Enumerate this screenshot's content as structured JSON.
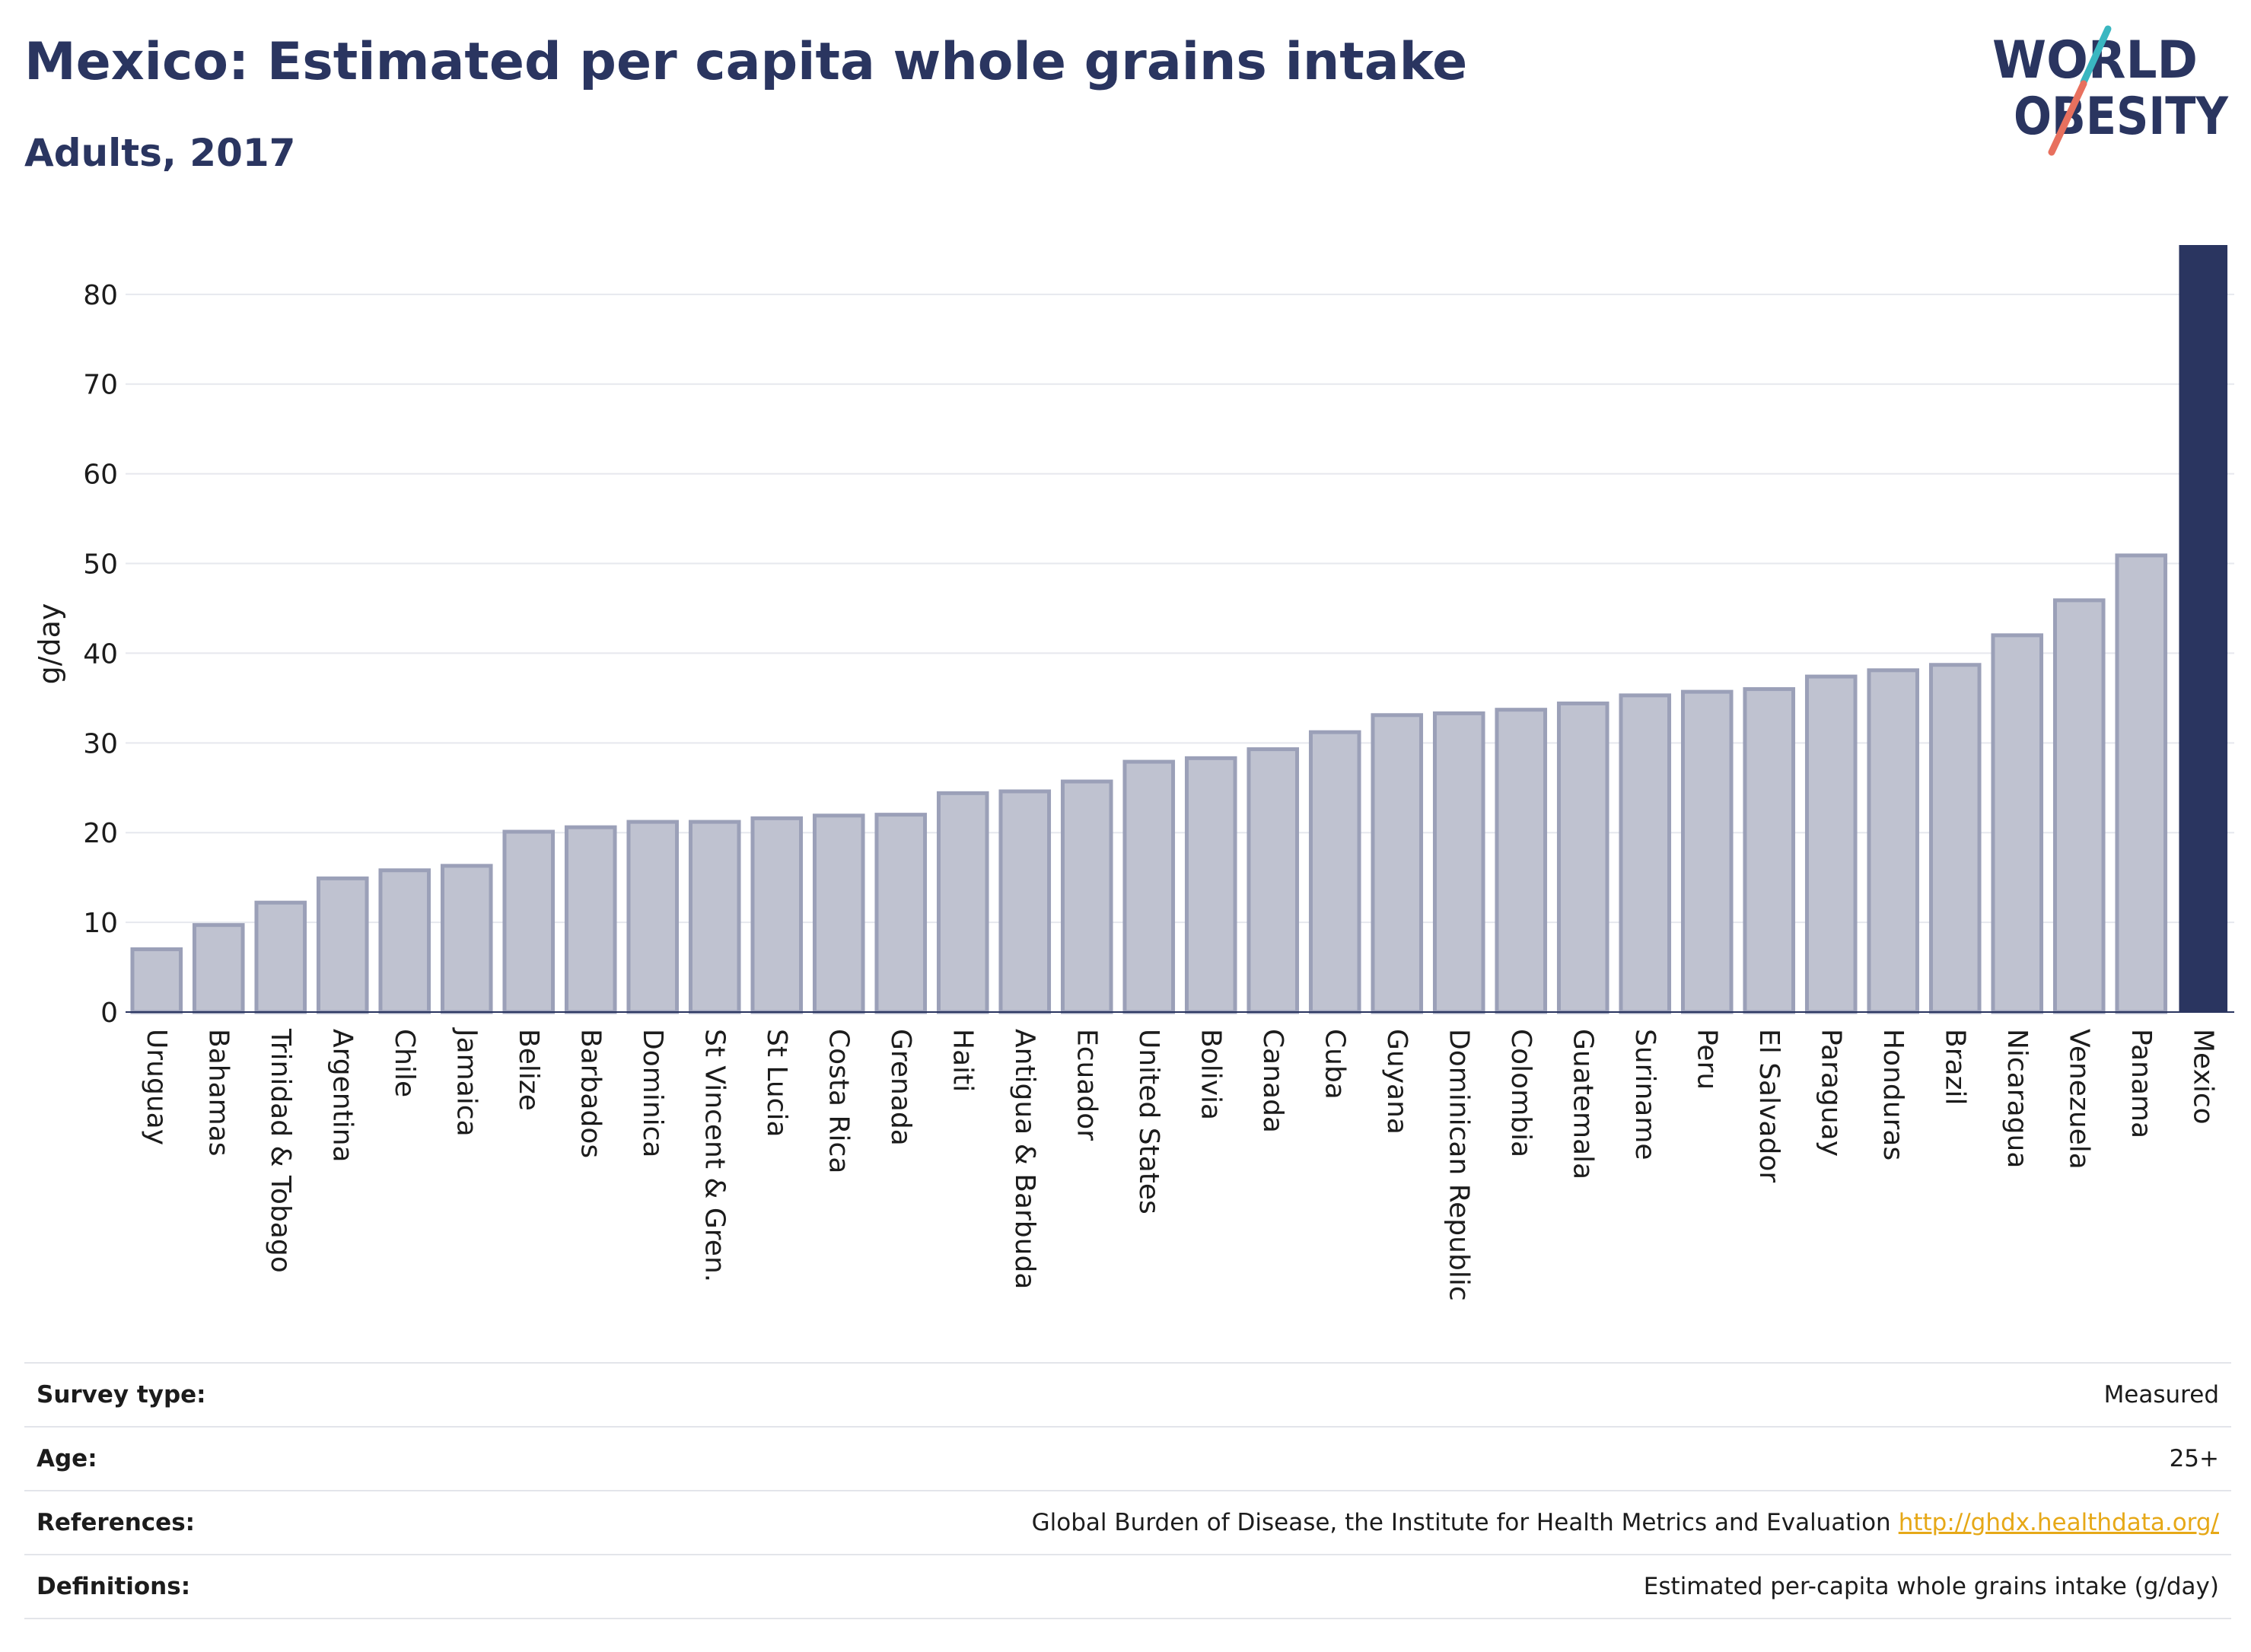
{
  "header": {
    "title": "Mexico: Estimated per capita whole grains intake",
    "subtitle": "Adults, 2017"
  },
  "logo": {
    "line1": "WORLD",
    "line2": "OBESITY",
    "colors": {
      "text": "#2a3560",
      "teal": "#3ab7c1",
      "coral": "#e8705e"
    }
  },
  "chart_data": {
    "type": "bar",
    "title": "Mexico: Estimated per capita whole grains intake",
    "subtitle": "Adults, 2017",
    "xlabel": "",
    "ylabel": "g/day",
    "ylim": [
      0,
      85.5
    ],
    "yticks": [
      0,
      10,
      20,
      30,
      40,
      50,
      60,
      70,
      80
    ],
    "grid": true,
    "highlight": "Mexico",
    "colors": {
      "default_fill": "#bfc2d0",
      "default_stroke": "#9ba0b8",
      "highlight": "#2a3560"
    },
    "categories": [
      "Uruguay",
      "Bahamas",
      "Trinidad & Tobago",
      "Argentina",
      "Chile",
      "Jamaica",
      "Belize",
      "Barbados",
      "Dominica",
      "St Vincent & Gren.",
      "St Lucia",
      "Costa Rica",
      "Grenada",
      "Haiti",
      "Antigua & Barbuda",
      "Ecuador",
      "United States",
      "Bolivia",
      "Canada",
      "Cuba",
      "Guyana",
      "Dominican Republic",
      "Colombia",
      "Guatemala",
      "Suriname",
      "Peru",
      "El Salvador",
      "Paraguay",
      "Honduras",
      "Brazil",
      "Nicaragua",
      "Venezuela",
      "Panama",
      "Mexico"
    ],
    "values": [
      7.0,
      9.7,
      12.2,
      14.9,
      15.8,
      16.3,
      20.1,
      20.6,
      21.2,
      21.2,
      21.6,
      21.9,
      22.0,
      24.4,
      24.6,
      25.7,
      27.9,
      28.3,
      29.3,
      31.2,
      33.1,
      33.3,
      33.7,
      34.4,
      35.3,
      35.7,
      36.0,
      37.4,
      38.1,
      38.7,
      42.0,
      45.9,
      50.9,
      85.5
    ]
  },
  "meta": {
    "rows": [
      {
        "label": "Survey type:",
        "value": "Measured",
        "link": ""
      },
      {
        "label": "Age:",
        "value": "25+",
        "link": ""
      },
      {
        "label": "References:",
        "value": "Global Burden of Disease, the Institute for Health Metrics and Evaluation",
        "link": "http://ghdx.healthdata.org/"
      },
      {
        "label": "Definitions:",
        "value": "Estimated per-capita whole grains intake (g/day)",
        "link": ""
      }
    ]
  }
}
